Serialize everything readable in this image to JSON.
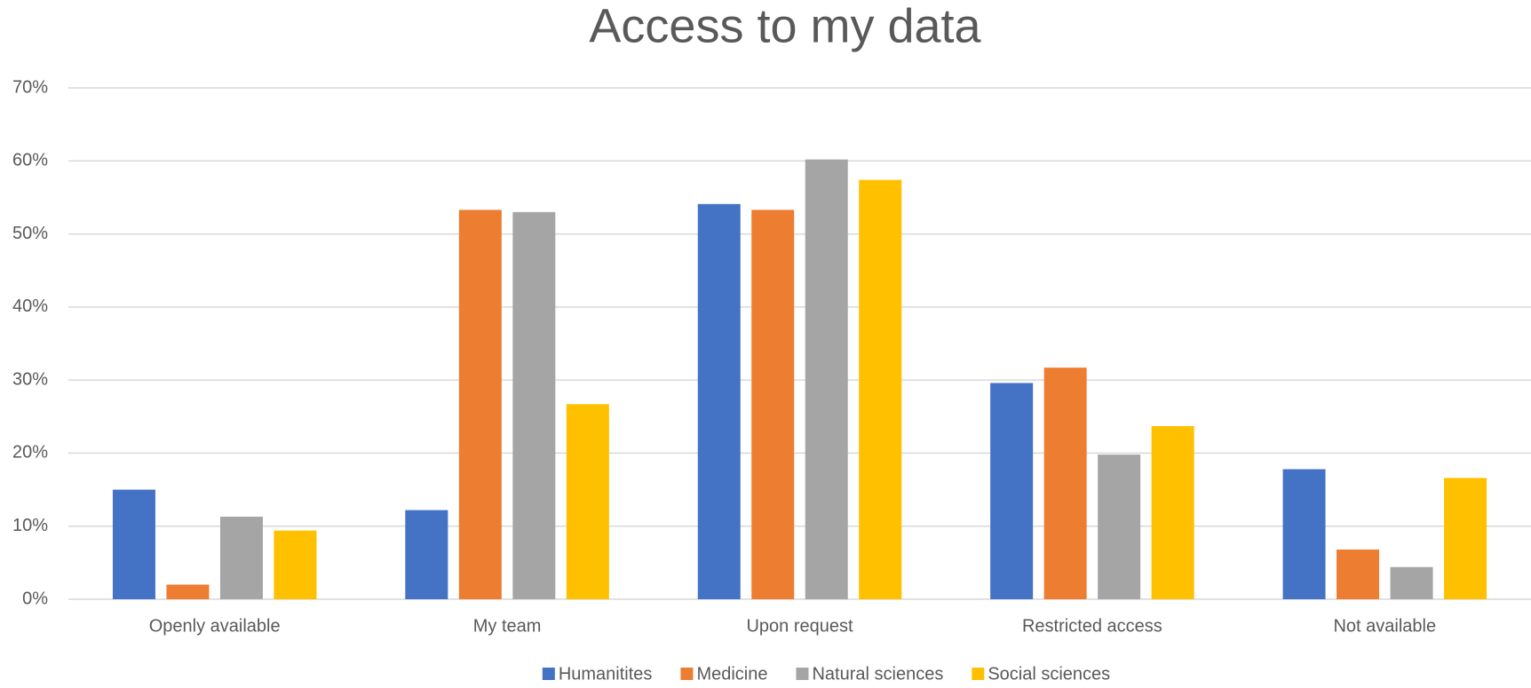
{
  "chart_data": {
    "type": "bar",
    "title": "Access to my data",
    "categories": [
      "Openly available",
      "My team",
      "Upon request",
      "Restricted access",
      "Not available"
    ],
    "series": [
      {
        "name": "Humanitites",
        "color": "#4472c4",
        "values": [
          15.0,
          12.2,
          54.1,
          29.6,
          17.8
        ]
      },
      {
        "name": "Medicine",
        "color": "#ed7d31",
        "values": [
          2.0,
          53.3,
          53.3,
          31.7,
          6.8
        ]
      },
      {
        "name": "Natural sciences",
        "color": "#a5a5a5",
        "values": [
          11.3,
          53.0,
          60.2,
          19.8,
          4.4
        ]
      },
      {
        "name": "Social sciences",
        "color": "#ffc000",
        "values": [
          9.4,
          26.7,
          57.4,
          23.7,
          16.6
        ]
      }
    ],
    "ylim": [
      0,
      70
    ],
    "yticks": [
      {
        "value": 0,
        "label": "0%"
      },
      {
        "value": 10,
        "label": "10%"
      },
      {
        "value": 20,
        "label": "20%"
      },
      {
        "value": 30,
        "label": "30%"
      },
      {
        "value": 40,
        "label": "40%"
      },
      {
        "value": 50,
        "label": "50%"
      },
      {
        "value": 60,
        "label": "60%"
      },
      {
        "value": 70,
        "label": "70%"
      }
    ],
    "grid": true,
    "legend": "bottom"
  }
}
